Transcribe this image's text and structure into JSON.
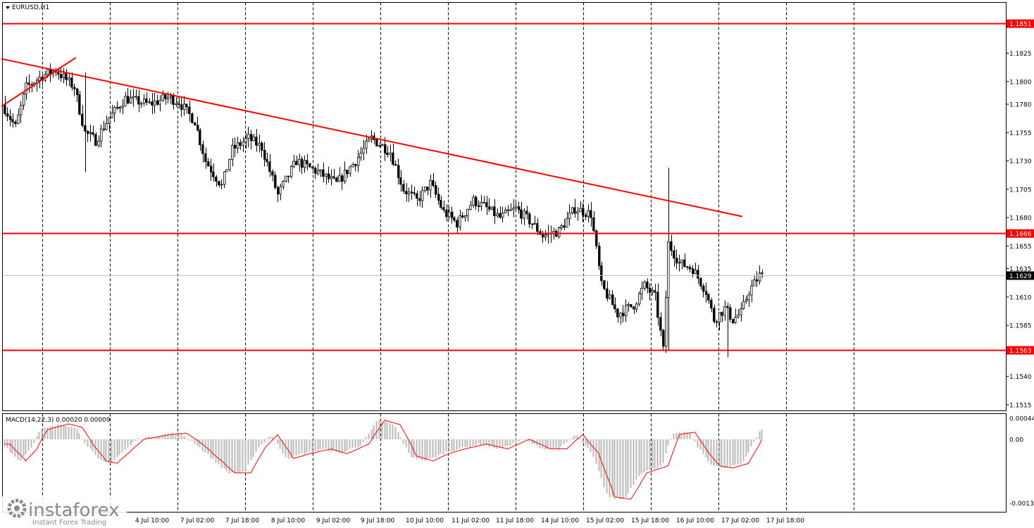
{
  "window": {
    "symbol_label": "EURUSD,H1",
    "macd_label": "MACD(14,22,3) 0.00020 0.00009"
  },
  "colors": {
    "level": "#ff0000",
    "trend": "#ff0000",
    "macd_signal": "#ff0000",
    "macd_hist": "#b9b9b9",
    "grid": "#000000",
    "candle": "#000000",
    "current_price_line": "#c0c0c0"
  },
  "watermark": {
    "brand": "instaforex",
    "tagline": "Instant Forex Trading",
    "logo_icon": "gear-icon"
  },
  "chart_data": {
    "type": "candlestick",
    "symbol": "EURUSD",
    "timeframe": "H1",
    "price_axis": {
      "ticks": [
        "1.1851",
        "1.1825",
        "1.1800",
        "1.1780",
        "1.1755",
        "1.1730",
        "1.1705",
        "1.1680",
        "1.1655",
        "1.1635",
        "1.1610",
        "1.1585",
        "1.1563",
        "1.1540",
        "1.1515"
      ]
    },
    "time_axis": {
      "ticks": [
        "4 Jul 10:00",
        "7 Jul 02:00",
        "7 Jul 18:00",
        "8 Jul 10:00",
        "9 Jul 02:00",
        "9 Jul 18:00",
        "10 Jul 10:00",
        "11 Jul 02:00",
        "11 Jul 18:00",
        "14 Jul 10:00",
        "15 Jul 02:00",
        "15 Jul 18:00",
        "16 Jul 10:00",
        "17 Jul 02:00",
        "17 Jul 18:00"
      ]
    },
    "horizontal_levels": [
      {
        "price": 1.1851,
        "label": "1.1851"
      },
      {
        "price": 1.1666,
        "label": "1.1666"
      },
      {
        "price": 1.1563,
        "label": "1.1563"
      }
    ],
    "current_price": {
      "price": 1.1629,
      "label": "1.1629"
    },
    "trend_lines": [
      {
        "from": {
          "bar": 0,
          "price": 1.182
        },
        "to": {
          "bar": 276,
          "price": 1.1681
        }
      },
      {
        "from": {
          "bar": 0,
          "price": 1.1778
        },
        "to": {
          "bar": 27,
          "price": 1.1821
        }
      }
    ],
    "price_path": [
      [
        0,
        1.178
      ],
      [
        5,
        1.176
      ],
      [
        9,
        1.1795
      ],
      [
        15,
        1.1805
      ],
      [
        20,
        1.181
      ],
      [
        27,
        1.1795
      ],
      [
        31,
        1.1755
      ],
      [
        35,
        1.1748
      ],
      [
        40,
        1.1768
      ],
      [
        46,
        1.1785
      ],
      [
        55,
        1.178
      ],
      [
        62,
        1.1786
      ],
      [
        66,
        1.1782
      ],
      [
        72,
        1.1765
      ],
      [
        76,
        1.173
      ],
      [
        82,
        1.1708
      ],
      [
        86,
        1.174
      ],
      [
        92,
        1.175
      ],
      [
        97,
        1.1742
      ],
      [
        103,
        1.17
      ],
      [
        110,
        1.173
      ],
      [
        118,
        1.172
      ],
      [
        125,
        1.171
      ],
      [
        132,
        1.173
      ],
      [
        138,
        1.175
      ],
      [
        145,
        1.1738
      ],
      [
        150,
        1.1705
      ],
      [
        155,
        1.1695
      ],
      [
        160,
        1.171
      ],
      [
        165,
        1.1685
      ],
      [
        170,
        1.1675
      ],
      [
        176,
        1.1695
      ],
      [
        180,
        1.169
      ],
      [
        186,
        1.168
      ],
      [
        192,
        1.1688
      ],
      [
        198,
        1.1675
      ],
      [
        202,
        1.1664
      ],
      [
        208,
        1.1668
      ],
      [
        214,
        1.1688
      ],
      [
        220,
        1.1683
      ],
      [
        224,
        1.162
      ],
      [
        230,
        1.1595
      ],
      [
        236,
        1.1603
      ],
      [
        240,
        1.162
      ],
      [
        244,
        1.161
      ],
      [
        247,
        1.1563
      ],
      [
        249,
        1.1657
      ],
      [
        253,
        1.164
      ],
      [
        258,
        1.1635
      ],
      [
        263,
        1.1615
      ],
      [
        266,
        1.159
      ],
      [
        270,
        1.16
      ],
      [
        273,
        1.159
      ],
      [
        276,
        1.1596
      ],
      [
        279,
        1.1615
      ],
      [
        283,
        1.1629
      ]
    ],
    "wick_spikes": [
      {
        "bar": 30,
        "high": 1.1808,
        "low": 1.172
      },
      {
        "bar": 248,
        "high": 1.1724,
        "low": 1.1563
      },
      {
        "bar": 270,
        "high": 1.1605,
        "low": 1.1557
      }
    ],
    "macd": {
      "fast": 14,
      "slow": 22,
      "signal_period": 3,
      "value": 0.0002,
      "signal": 9e-05,
      "axis_ticks": [
        "0.00044",
        "0.00",
        "-0.00133"
      ],
      "hist_path": [
        [
          0,
          -0.0001
        ],
        [
          6,
          -0.00045
        ],
        [
          10,
          -0.0002
        ],
        [
          14,
          0.0002
        ],
        [
          22,
          0.00032
        ],
        [
          27,
          0.00025
        ],
        [
          31,
          -0.0001
        ],
        [
          36,
          -0.00045
        ],
        [
          40,
          -0.0005
        ],
        [
          44,
          -0.0003
        ],
        [
          50,
          0.0
        ],
        [
          60,
          0.0001
        ],
        [
          66,
          0.00013
        ],
        [
          72,
          -0.0001
        ],
        [
          78,
          -0.0004
        ],
        [
          84,
          -0.0007
        ],
        [
          90,
          -0.0007
        ],
        [
          95,
          -0.0002
        ],
        [
          100,
          0.0001
        ],
        [
          106,
          -0.0004
        ],
        [
          112,
          -0.0003
        ],
        [
          120,
          -0.0002
        ],
        [
          126,
          -0.0003
        ],
        [
          134,
          -0.0001
        ],
        [
          140,
          0.0004
        ],
        [
          146,
          0.0003
        ],
        [
          152,
          -0.00035
        ],
        [
          158,
          -0.00045
        ],
        [
          164,
          -0.0003
        ],
        [
          170,
          -0.0002
        ],
        [
          178,
          -0.0001
        ],
        [
          186,
          -0.0002
        ],
        [
          194,
          0.0
        ],
        [
          202,
          -0.0002
        ],
        [
          208,
          -0.0002
        ],
        [
          214,
          0.0001
        ],
        [
          220,
          -0.0003
        ],
        [
          226,
          -0.0012
        ],
        [
          232,
          -0.00125
        ],
        [
          238,
          -0.0007
        ],
        [
          246,
          -0.00055
        ],
        [
          250,
          0.0001
        ],
        [
          256,
          0.00015
        ],
        [
          260,
          -0.0002
        ],
        [
          265,
          -0.00055
        ],
        [
          270,
          -0.0006
        ],
        [
          276,
          -0.0005
        ],
        [
          283,
          0.0002
        ]
      ]
    }
  }
}
